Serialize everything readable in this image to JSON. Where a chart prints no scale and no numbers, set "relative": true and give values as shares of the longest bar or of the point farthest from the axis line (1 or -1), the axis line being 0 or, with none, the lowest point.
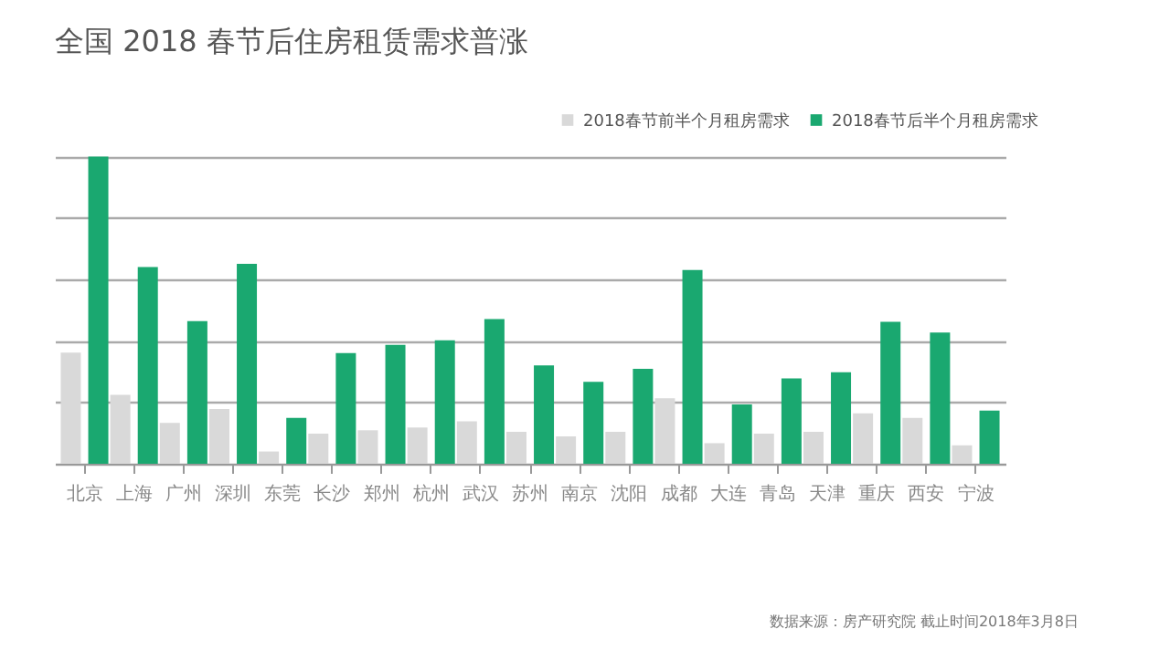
{
  "chart_data": {
    "type": "bar",
    "title": "全国 2018 春节后住房租赁需求普涨",
    "relative": true,
    "grid": "y",
    "legend": "top right",
    "categories": [
      "北京",
      "上海",
      "广州",
      "深圳",
      "东莞",
      "长沙",
      "郑州",
      "杭州",
      "武汉",
      "苏州",
      "南京",
      "沈阳",
      "成都",
      "大连",
      "青岛",
      "天津",
      "重庆",
      "西安",
      "宁波"
    ],
    "series": [
      {
        "name": "2018春节前半个月租房需求",
        "color": "#d9d9d9",
        "values": [
          0.362,
          0.224,
          0.133,
          0.178,
          0.04,
          0.098,
          0.109,
          0.118,
          0.138,
          0.104,
          0.089,
          0.104,
          0.213,
          0.067,
          0.098,
          0.104,
          0.164,
          0.149,
          0.06
        ]
      },
      {
        "name": "2018春节后半个月租房需求",
        "color": "#1aa870",
        "values": [
          1,
          0.64,
          0.464,
          0.651,
          0.149,
          0.36,
          0.387,
          0.402,
          0.471,
          0.32,
          0.267,
          0.309,
          0.631,
          0.193,
          0.278,
          0.298,
          0.462,
          0.427,
          0.173
        ]
      }
    ],
    "annotations": [
      "数据来源：房产研究院 截止时间2018年3月8日"
    ]
  }
}
